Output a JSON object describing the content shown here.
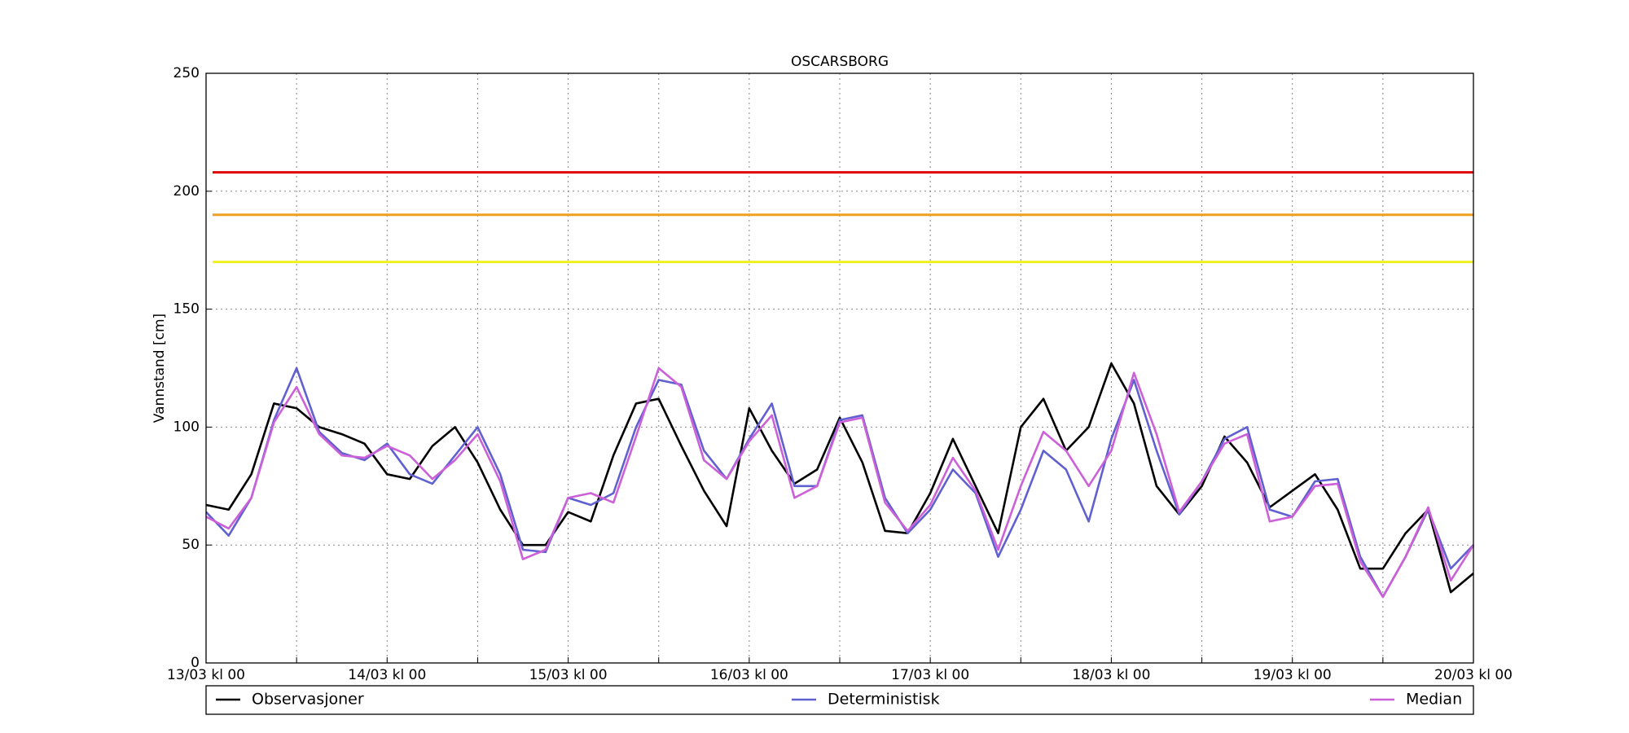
{
  "chart_data": {
    "type": "line",
    "title": "OSCARSBORG",
    "ylabel": "Vannstand [cm]",
    "x": [
      0,
      3,
      6,
      9,
      12,
      15,
      18,
      21,
      24,
      27,
      30,
      33,
      36,
      39,
      42,
      45,
      48,
      51,
      54,
      57,
      60,
      63,
      66,
      69,
      72,
      75,
      78,
      81,
      84,
      87,
      90,
      93,
      96,
      99,
      102,
      105,
      108,
      111,
      114,
      117,
      120,
      123,
      126,
      129,
      132,
      135,
      138,
      141,
      144,
      147,
      150,
      153,
      156,
      159,
      162,
      165,
      168
    ],
    "series": [
      {
        "name": "Observasjoner",
        "color": "#000000",
        "values": [
          67,
          65,
          80,
          110,
          108,
          100,
          97,
          93,
          80,
          78,
          92,
          100,
          85,
          65,
          50,
          50,
          64,
          60,
          88,
          110,
          112,
          92,
          73,
          58,
          108,
          90,
          76,
          82,
          104,
          85,
          56,
          55,
          72,
          95,
          75,
          55,
          100,
          112,
          90,
          100,
          127,
          110,
          75,
          63,
          75,
          96,
          85,
          66,
          73,
          80,
          65,
          40,
          40,
          55,
          65,
          30,
          38
        ]
      },
      {
        "name": "Deterministisk",
        "color": "#6060d0",
        "values": [
          64,
          54,
          70,
          103,
          125,
          98,
          89,
          86,
          93,
          80,
          76,
          88,
          100,
          80,
          48,
          47,
          70,
          67,
          72,
          100,
          120,
          118,
          90,
          78,
          95,
          110,
          75,
          75,
          103,
          105,
          70,
          55,
          65,
          82,
          72,
          45,
          65,
          90,
          82,
          60,
          95,
          120,
          90,
          63,
          77,
          95,
          100,
          65,
          62,
          77,
          78,
          45,
          28,
          45,
          65,
          40,
          50
        ]
      },
      {
        "name": "Median",
        "color": "#cc60d8",
        "values": [
          62,
          57,
          70,
          102,
          117,
          97,
          88,
          87,
          92,
          88,
          78,
          86,
          97,
          77,
          44,
          48,
          70,
          72,
          68,
          96,
          125,
          117,
          86,
          78,
          94,
          105,
          70,
          75,
          102,
          104,
          68,
          56,
          67,
          87,
          73,
          48,
          75,
          98,
          90,
          75,
          90,
          123,
          97,
          64,
          77,
          93,
          97,
          60,
          62,
          75,
          76,
          43,
          28,
          45,
          66,
          35,
          50
        ]
      }
    ],
    "thresholds": [
      {
        "value": 208,
        "color": "#e00000"
      },
      {
        "value": 190,
        "color": "#f0a020"
      },
      {
        "value": 170,
        "color": "#f0f020"
      }
    ],
    "xlim": [
      0,
      168
    ],
    "xticks": [
      {
        "value": 0,
        "label": "13/03 kl 00"
      },
      {
        "value": 12,
        "label": null
      },
      {
        "value": 24,
        "label": "14/03 kl 00"
      },
      {
        "value": 36,
        "label": null
      },
      {
        "value": 48,
        "label": "15/03 kl 00"
      },
      {
        "value": 60,
        "label": null
      },
      {
        "value": 72,
        "label": "16/03 kl 00"
      },
      {
        "value": 84,
        "label": null
      },
      {
        "value": 96,
        "label": "17/03 kl 00"
      },
      {
        "value": 108,
        "label": null
      },
      {
        "value": 120,
        "label": "18/03 kl 00"
      },
      {
        "value": 132,
        "label": null
      },
      {
        "value": 144,
        "label": "19/03 kl 00"
      },
      {
        "value": 156,
        "label": null
      },
      {
        "value": 168,
        "label": "20/03 kl 00"
      }
    ],
    "ylim": [
      0,
      250
    ],
    "yticks": [
      0,
      50,
      100,
      150,
      200,
      250
    ],
    "grid": true
  }
}
